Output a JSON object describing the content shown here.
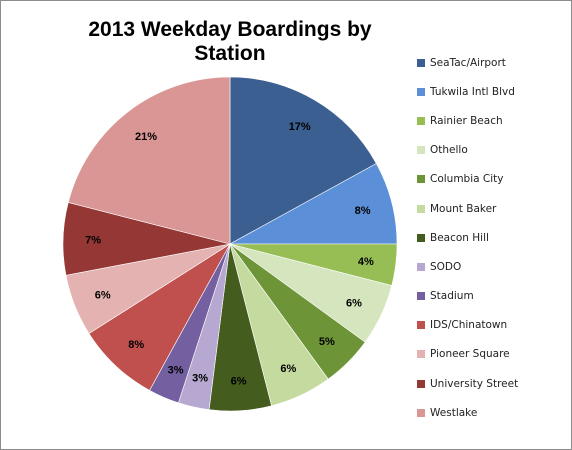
{
  "chart_data": {
    "type": "pie",
    "title": "2013 Weekday Boardings by Station",
    "categories": [
      "SeaTac/Airport",
      "Tukwila Intl Blvd",
      "Rainier Beach",
      "Othello",
      "Columbia City",
      "Mount Baker",
      "Beacon Hill",
      "SODO",
      "Stadium",
      "IDS/Chinatown",
      "Pioneer Square",
      "University Street",
      "Westlake"
    ],
    "values": [
      17,
      8,
      4,
      6,
      5,
      6,
      6,
      3,
      3,
      8,
      6,
      7,
      21
    ],
    "labels": [
      "17%",
      "8%",
      "4%",
      "6%",
      "5%",
      "6%",
      "6%",
      "3%",
      "3%",
      "8%",
      "6%",
      "7%",
      "21%"
    ],
    "colors": [
      "#3c5f91",
      "#5b8fd7",
      "#97bd55",
      "#d5e5bd",
      "#6e9438",
      "#c5da9f",
      "#445d1f",
      "#b6a8d0",
      "#7460a1",
      "#c0504d",
      "#e4b3b1",
      "#953735",
      "#d99694"
    ],
    "legend_position": "right"
  }
}
